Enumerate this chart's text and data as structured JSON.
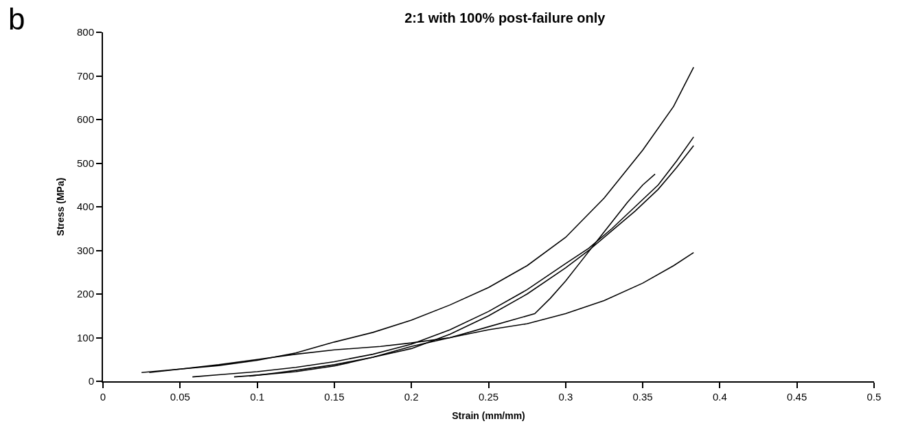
{
  "chart_data": {
    "type": "line",
    "title": "2:1 with 100% post-failure only",
    "xlabel": "Strain (mm/mm)",
    "ylabel": "Stress (MPa)",
    "annotations": [
      "b"
    ],
    "xlim": [
      0,
      0.5
    ],
    "xticks": [
      0,
      0.05,
      0.1,
      0.15,
      0.2,
      0.25,
      0.3,
      0.35,
      0.4,
      0.45,
      0.5
    ],
    "ylim": [
      0,
      800
    ],
    "yticks": [
      0,
      100,
      200,
      300,
      400,
      500,
      600,
      700,
      800
    ],
    "marker": "none",
    "line_style": "solid",
    "series": [
      {
        "color": "#000000",
        "x": [
          0.025,
          0.05,
          0.075,
          0.1,
          0.125,
          0.15,
          0.175,
          0.2,
          0.225,
          0.25,
          0.275,
          0.3,
          0.325,
          0.35,
          0.37,
          0.383
        ],
        "values": [
          20,
          28,
          36,
          48,
          65,
          90,
          112,
          140,
          175,
          215,
          265,
          330,
          420,
          530,
          630,
          720
        ]
      },
      {
        "color": "#000000",
        "x": [
          0.03,
          0.05,
          0.075,
          0.1,
          0.125,
          0.15,
          0.18,
          0.2,
          0.225,
          0.25,
          0.275,
          0.3,
          0.325,
          0.35,
          0.37,
          0.383
        ],
        "values": [
          20,
          28,
          38,
          50,
          62,
          72,
          80,
          88,
          100,
          118,
          132,
          155,
          185,
          225,
          265,
          295
        ]
      },
      {
        "color": "#000000",
        "x": [
          0.085,
          0.1,
          0.125,
          0.15,
          0.175,
          0.2,
          0.225,
          0.25,
          0.28,
          0.29,
          0.3,
          0.31,
          0.32,
          0.33,
          0.34,
          0.35,
          0.358
        ],
        "values": [
          10,
          14,
          22,
          35,
          55,
          80,
          100,
          125,
          155,
          190,
          230,
          275,
          320,
          365,
          410,
          450,
          475
        ]
      },
      {
        "color": "#000000",
        "x": [
          0.058,
          0.075,
          0.1,
          0.125,
          0.15,
          0.175,
          0.2,
          0.225,
          0.25,
          0.275,
          0.3,
          0.315,
          0.33,
          0.345,
          0.36,
          0.372,
          0.383
        ],
        "values": [
          10,
          15,
          22,
          32,
          45,
          62,
          85,
          118,
          160,
          210,
          270,
          305,
          350,
          400,
          450,
          505,
          560
        ]
      },
      {
        "color": "#000000",
        "x": [
          0.095,
          0.11,
          0.125,
          0.15,
          0.175,
          0.2,
          0.225,
          0.25,
          0.275,
          0.3,
          0.315,
          0.33,
          0.345,
          0.36,
          0.372,
          0.383
        ],
        "values": [
          12,
          18,
          25,
          38,
          55,
          75,
          108,
          150,
          200,
          260,
          300,
          345,
          390,
          440,
          490,
          540
        ]
      }
    ]
  }
}
